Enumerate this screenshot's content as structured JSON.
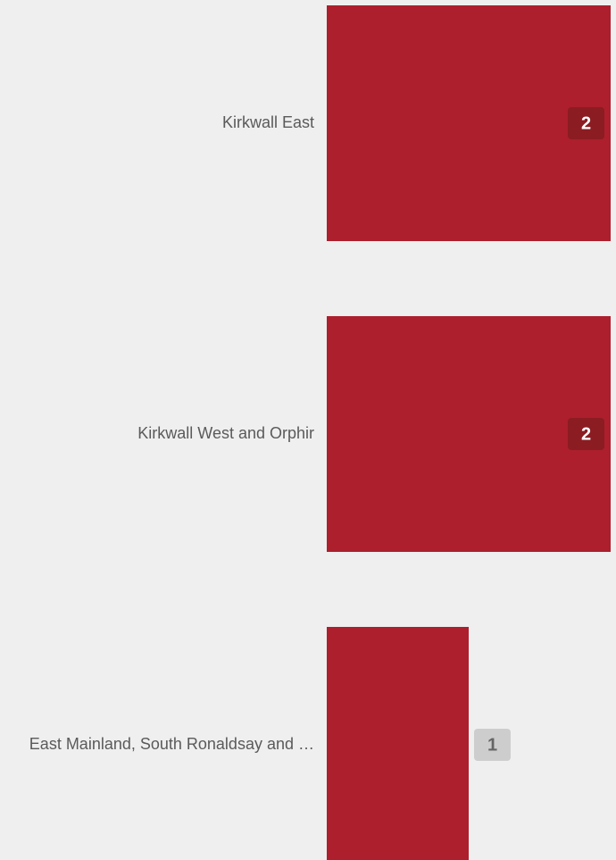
{
  "chart_data": {
    "type": "bar",
    "orientation": "horizontal",
    "categories": [
      "Kirkwall East",
      "Kirkwall West and Orphir",
      "East Mainland, South Ronaldsay and …"
    ],
    "values": [
      2,
      2,
      1
    ],
    "color": "#ad1f2d",
    "xlim": [
      0,
      2
    ]
  }
}
